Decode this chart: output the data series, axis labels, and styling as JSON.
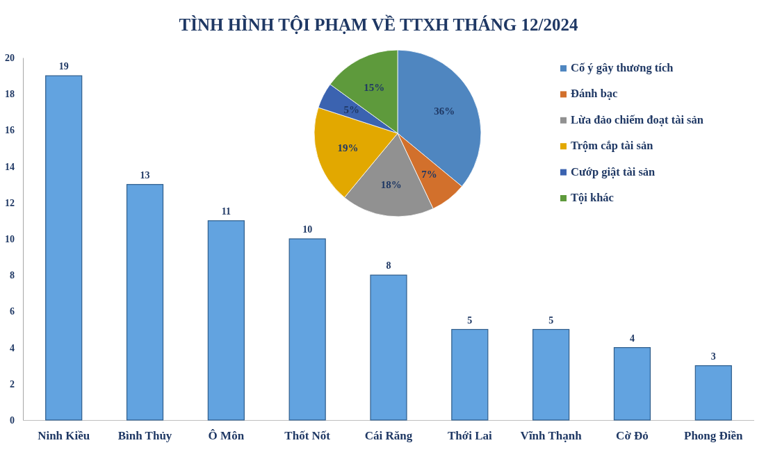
{
  "chart_data": [
    {
      "type": "bar",
      "title": "TÌNH HÌNH TỘI PHẠM VỀ TTXH THÁNG 12/2024",
      "categories": [
        "Ninh Kiều",
        "Bình Thủy",
        "Ô Môn",
        "Thốt Nốt",
        "Cái Răng",
        "Thới Lai",
        "Vĩnh Thạnh",
        "Cờ Đỏ",
        "Phong Điền"
      ],
      "values": [
        19,
        13,
        11,
        10,
        8,
        5,
        5,
        4,
        3
      ],
      "color": "#62a3e0",
      "ylim": [
        0,
        20
      ],
      "yticks": [
        0,
        2,
        4,
        6,
        8,
        10,
        12,
        14,
        16,
        18,
        20
      ],
      "grid": false,
      "data_labels": true
    },
    {
      "type": "pie",
      "categories": [
        "Cố ý gây thương tích",
        "Đánh bạc",
        "Lừa đảo chiếm đoạt tài sản",
        "Trộm cắp tài sản",
        "Cướp giật tài sản",
        "Tội khác"
      ],
      "values": [
        36,
        7,
        18,
        19,
        5,
        15
      ],
      "value_labels": [
        "36%",
        "7%",
        "18%",
        "19%",
        "5%",
        "15%"
      ],
      "colors": [
        "#4f86c0",
        "#d2702c",
        "#919191",
        "#e2a800",
        "#3b63b0",
        "#5e9a3c"
      ],
      "legend": "right"
    }
  ]
}
